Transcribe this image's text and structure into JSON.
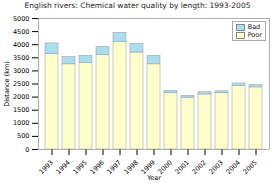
{
  "chart_data": {
    "type": "bar",
    "stacked": true,
    "title": "English rivers: Chemical water quality by length: 1993-2005",
    "xlabel": "Year",
    "ylabel": "Distance (km)",
    "categories": [
      "1993",
      "1994",
      "1995",
      "1996",
      "1997",
      "1998",
      "1999",
      "2000",
      "2001",
      "2002",
      "2003",
      "2004",
      "2005"
    ],
    "series": [
      {
        "name": "Poor",
        "color": "#ffffcc",
        "values": [
          3650,
          3250,
          3300,
          3600,
          4100,
          3700,
          3250,
          2150,
          1980,
          2100,
          2150,
          2430,
          2370
        ]
      },
      {
        "name": "Bad",
        "color": "#aaddee",
        "values": [
          400,
          280,
          280,
          320,
          350,
          330,
          330,
          90,
          70,
          90,
          70,
          90,
          90
        ]
      }
    ],
    "ylim": [
      0,
      5000
    ],
    "yticks": [
      0,
      500,
      1000,
      1500,
      2000,
      2500,
      3000,
      3500,
      4000,
      4500,
      5000
    ],
    "grid": true,
    "legend": "upper right"
  }
}
